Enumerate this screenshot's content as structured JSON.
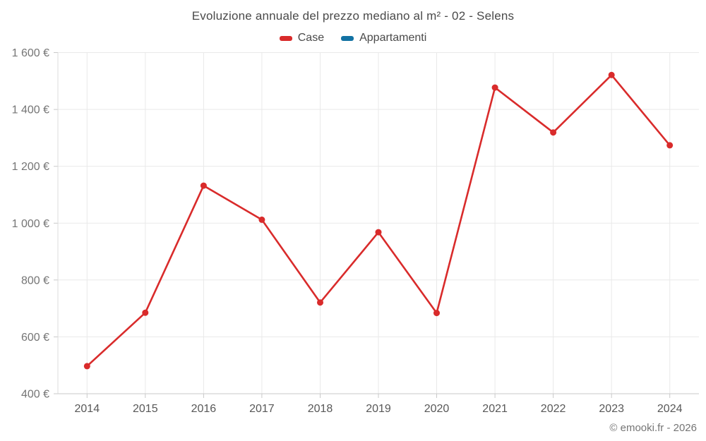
{
  "page": {
    "title": "Evoluzione annuale del prezzo mediano al m² - 02 - Selens",
    "footer": "© emooki.fr - 2026"
  },
  "legend": {
    "items": [
      {
        "label": "Case",
        "color": "#d92b2b"
      },
      {
        "label": "Appartamenti",
        "color": "#1272a3"
      }
    ]
  },
  "chart_data": {
    "type": "line",
    "title": "Evoluzione annuale del prezzo mediano al m² - 02 - Selens",
    "categories": [
      "2014",
      "2015",
      "2016",
      "2017",
      "2018",
      "2019",
      "2020",
      "2021",
      "2022",
      "2023",
      "2024"
    ],
    "series": [
      {
        "name": "Case",
        "color": "#d92b2b",
        "values": [
          497,
          685,
          1132,
          1012,
          721,
          968,
          684,
          1477,
          1319,
          1521,
          1274
        ]
      },
      {
        "name": "Appartamenti",
        "color": "#1272a3",
        "values": []
      }
    ],
    "xlabel": "",
    "ylabel": "",
    "ylim": [
      400,
      1600
    ],
    "y_tick_step": 200,
    "y_tick_labels": [
      "400 €",
      "600 €",
      "800 €",
      "1 000 €",
      "1 200 €",
      "1 400 €",
      "1 600 €"
    ],
    "grid": true,
    "legend_position": "top",
    "marker": "circle"
  }
}
